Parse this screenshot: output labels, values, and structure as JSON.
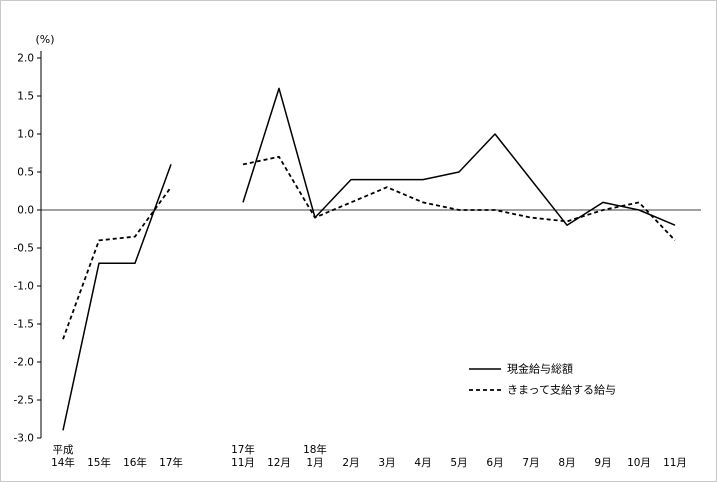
{
  "page": {
    "background": "#ffffff",
    "line_color": "#000000"
  },
  "chart_data": {
    "type": "line",
    "title": "",
    "y_axis": {
      "unit_label": "(%)",
      "min": -3.0,
      "max": 2.0,
      "step": 0.5
    },
    "x_axis": {
      "slots": 18,
      "gap_slot": 4,
      "categories": [
        {
          "idx": 0,
          "top": "平成",
          "bottom": "14年"
        },
        {
          "idx": 1,
          "top": "",
          "bottom": "15年"
        },
        {
          "idx": 2,
          "top": "",
          "bottom": "16年"
        },
        {
          "idx": 3,
          "top": "",
          "bottom": "17年"
        },
        {
          "idx": 5,
          "top": "17年",
          "bottom": "11月"
        },
        {
          "idx": 6,
          "top": "",
          "bottom": "12月"
        },
        {
          "idx": 7,
          "top": "18年",
          "bottom": "1月"
        },
        {
          "idx": 8,
          "top": "",
          "bottom": "2月"
        },
        {
          "idx": 9,
          "top": "",
          "bottom": "3月"
        },
        {
          "idx": 10,
          "top": "",
          "bottom": "4月"
        },
        {
          "idx": 11,
          "top": "",
          "bottom": "5月"
        },
        {
          "idx": 12,
          "top": "",
          "bottom": "6月"
        },
        {
          "idx": 13,
          "top": "",
          "bottom": "7月"
        },
        {
          "idx": 14,
          "top": "",
          "bottom": "8月"
        },
        {
          "idx": 15,
          "top": "",
          "bottom": "9月"
        },
        {
          "idx": 16,
          "top": "",
          "bottom": "10月"
        },
        {
          "idx": 17,
          "top": "",
          "bottom": "11月"
        }
      ]
    },
    "series": [
      {
        "name": "現金給与総額",
        "key": "cash-earnings-total",
        "line_style": "solid",
        "color": "#000000",
        "values": [
          -2.9,
          -0.7,
          -0.7,
          0.6,
          null,
          0.1,
          1.6,
          -0.1,
          0.4,
          0.4,
          0.4,
          0.5,
          1.0,
          0.4,
          -0.2,
          0.1,
          0.0,
          -0.2
        ]
      },
      {
        "name": "きまって支給する給与",
        "key": "contractual-cash-earnings",
        "line_style": "dashed",
        "color": "#000000",
        "values": [
          -1.7,
          -0.4,
          -0.35,
          0.3,
          null,
          0.6,
          0.7,
          -0.1,
          0.1,
          0.3,
          0.1,
          0.0,
          0.0,
          -0.1,
          -0.15,
          0.0,
          0.1,
          -0.4
        ]
      }
    ],
    "legend": {
      "position": "middle-right",
      "x_sample_start": 468,
      "x_sample_end": 500,
      "x_text": 506,
      "row_y": [
        368,
        389
      ]
    }
  }
}
